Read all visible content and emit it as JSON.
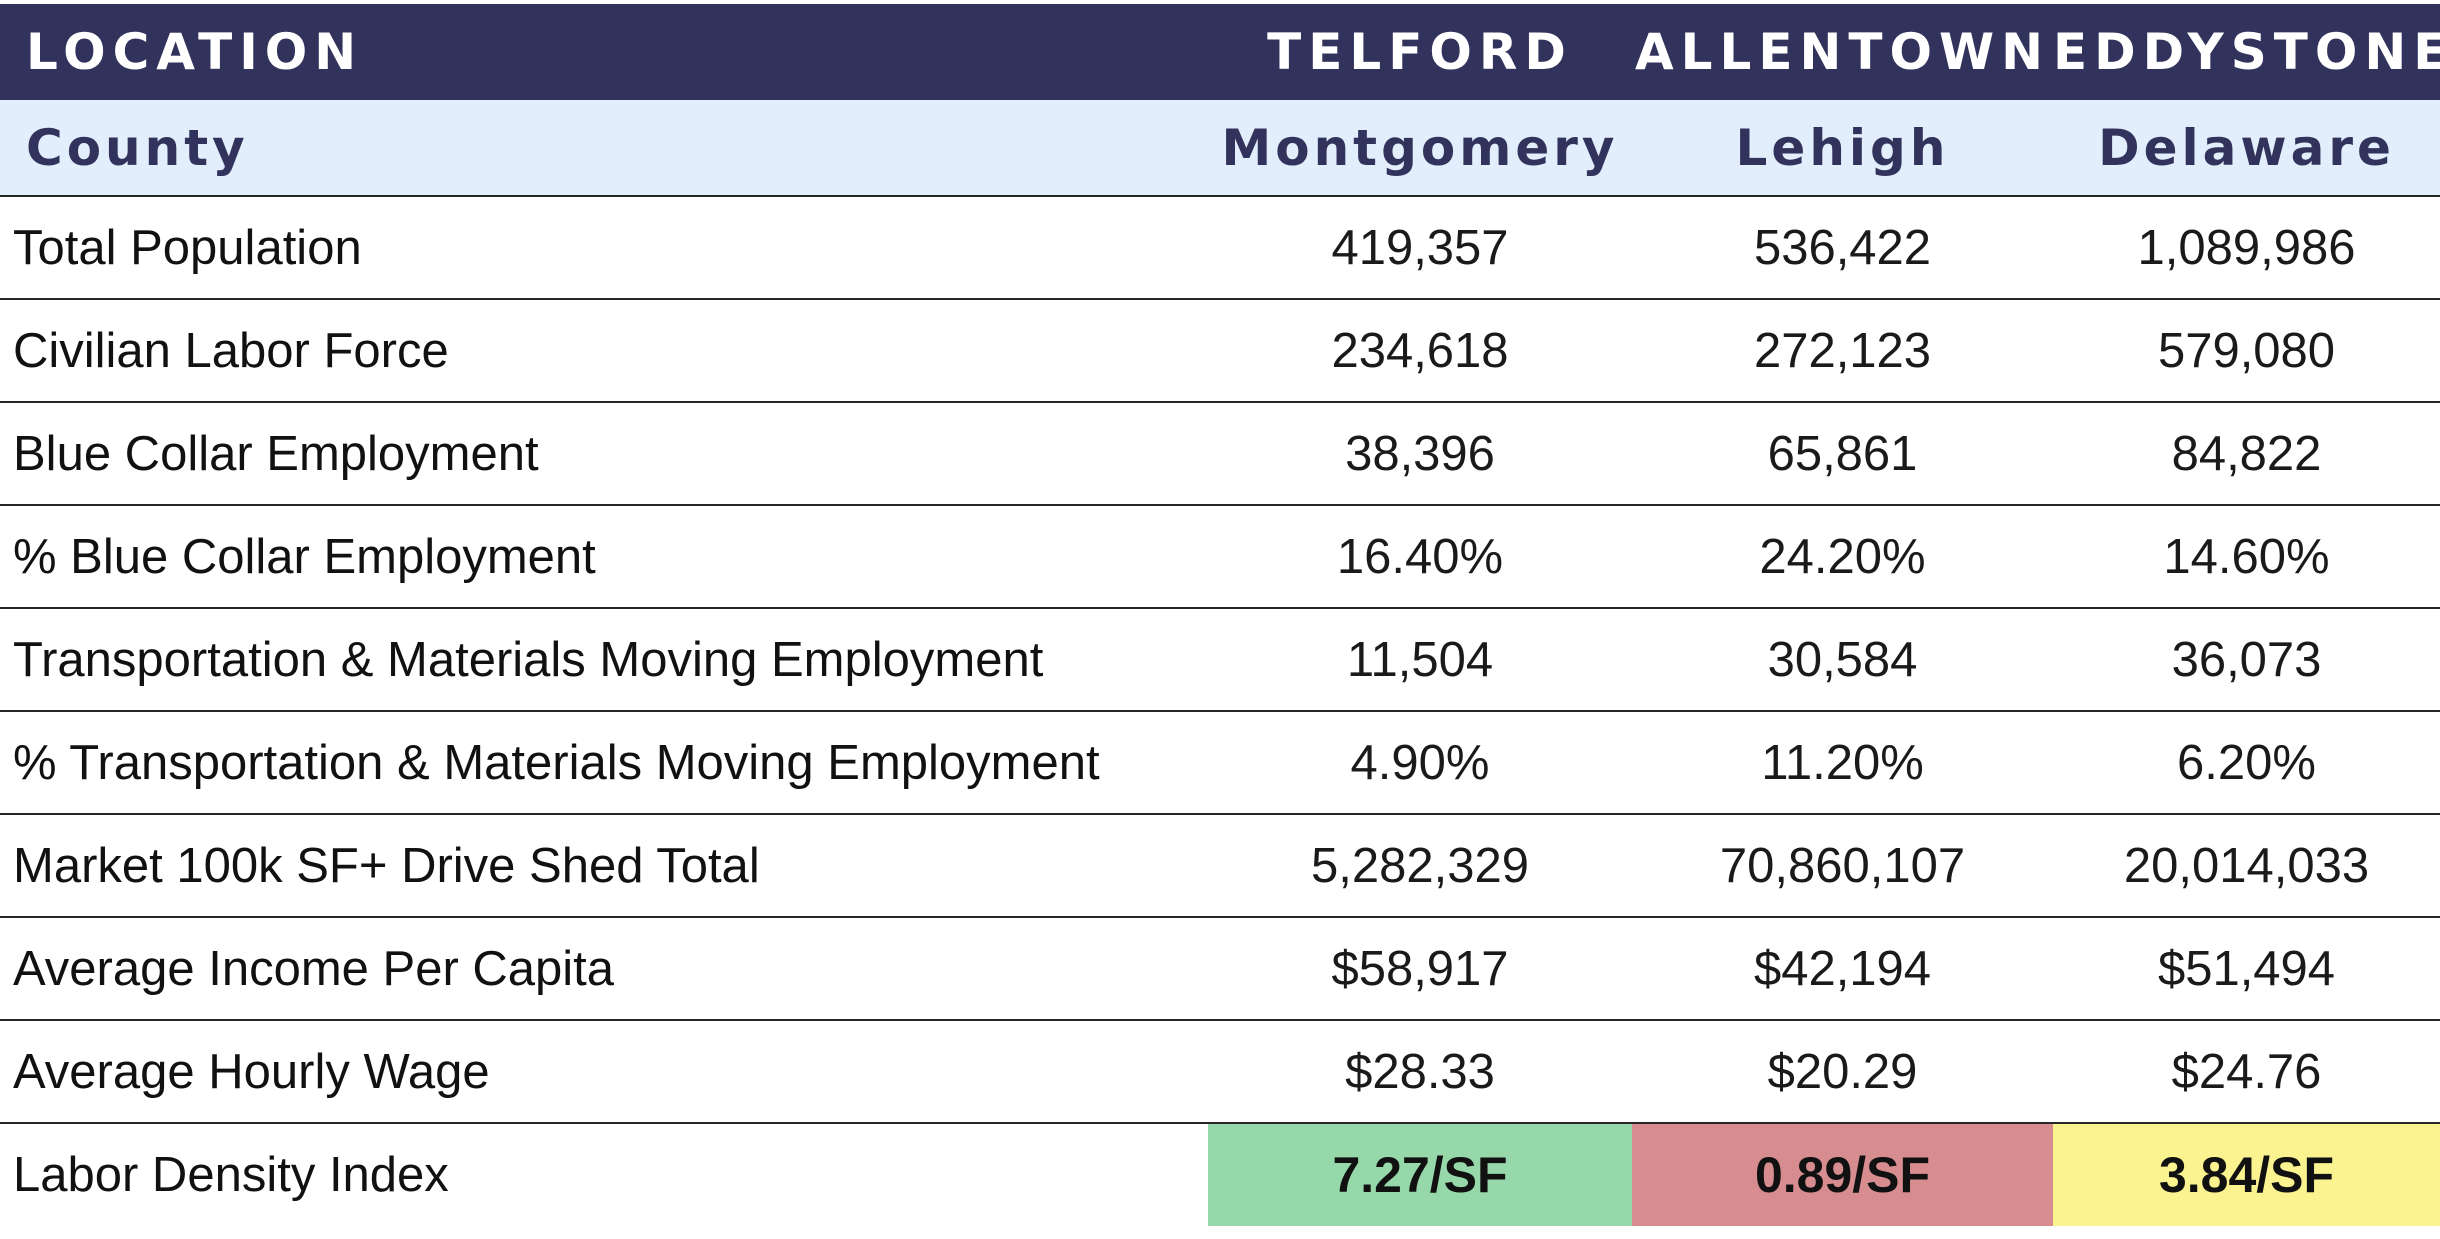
{
  "header": {
    "label": "LOCATION",
    "locations": [
      "TELFORD",
      "ALLENTOWN",
      "EDDYSTONE"
    ]
  },
  "county": {
    "label": "County",
    "values": [
      "Montgomery",
      "Lehigh",
      "Delaware"
    ]
  },
  "rows": [
    {
      "label": "Total Population",
      "values": [
        "419,357",
        "536,422",
        "1,089,986"
      ]
    },
    {
      "label": "Civilian Labor Force",
      "values": [
        "234,618",
        "272,123",
        "579,080"
      ]
    },
    {
      "label": "Blue Collar Employment",
      "values": [
        "38,396",
        "65,861",
        "84,822"
      ]
    },
    {
      "label": "% Blue Collar Employment",
      "values": [
        "16.40%",
        "24.20%",
        "14.60%"
      ]
    },
    {
      "label": "Transportation & Materials Moving Employment",
      "values": [
        "11,504",
        "30,584",
        "36,073"
      ]
    },
    {
      "label": "% Transportation & Materials Moving Employment",
      "values": [
        "4.90%",
        "11.20%",
        "6.20%"
      ]
    },
    {
      "label": "Market 100k SF+ Drive Shed Total",
      "values": [
        "5,282,329",
        "70,860,107",
        "20,014,033"
      ]
    },
    {
      "label": "Average Income Per Capita",
      "values": [
        "$58,917",
        "$42,194",
        "$51,494"
      ]
    },
    {
      "label": "Average Hourly Wage",
      "values": [
        "$28.33",
        "$20.29",
        "$24.76"
      ]
    },
    {
      "label": "Labor Density Index",
      "values": [
        "7.27/SF",
        "0.89/SF",
        "3.84/SF"
      ]
    }
  ],
  "colors": {
    "header_bg": "#32335c",
    "county_bg": "#e2eefb",
    "rule": "#262626",
    "density_high": "#96d8a9",
    "density_low": "#d78d90",
    "density_mid": "#fbf38f"
  }
}
